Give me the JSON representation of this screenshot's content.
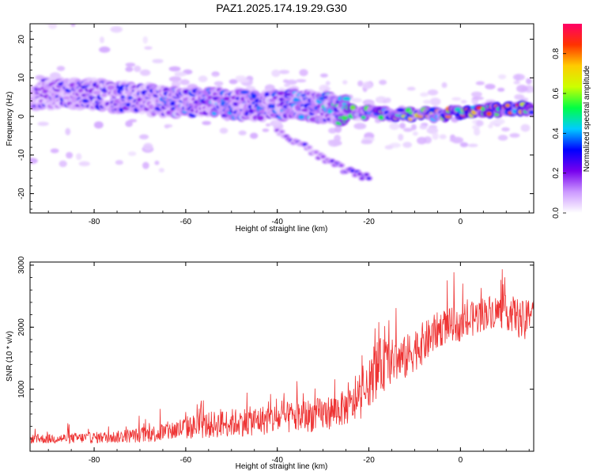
{
  "title": "PAZ1.2025.174.19.29.G30",
  "chart_data": [
    {
      "type": "heatmap",
      "xlabel": "Height of straight line (km)",
      "ylabel": "Frequency (Hz)",
      "xlim": [
        -94,
        16
      ],
      "ylim": [
        -25,
        24
      ],
      "xticks": [
        "-80",
        "-60",
        "-40",
        "-20",
        "0"
      ],
      "xtick_values": [
        -80,
        -60,
        -40,
        -20,
        0
      ],
      "yticks": [
        "20",
        "10",
        "0",
        "-10",
        "-20"
      ],
      "ytick_values": [
        20,
        10,
        0,
        -10,
        -20
      ],
      "colorbar": {
        "label": "Normalized spectral amplitude",
        "range": [
          0,
          0.95
        ],
        "ticks": [
          "0.0",
          "0.2",
          "0.4",
          "0.6",
          "0.8"
        ],
        "tick_values": [
          0,
          0.2,
          0.4,
          0.6,
          0.8
        ],
        "colormap": [
          "#ffffff",
          "#cc99ff",
          "#7700ee",
          "#0000ff",
          "#00ccff",
          "#00ff44",
          "#ccff00",
          "#ffcc00",
          "#ff3300",
          "#ff0066"
        ]
      },
      "main_ridge": {
        "x": [
          -93,
          -85,
          -75,
          -65,
          -55,
          -45,
          -35,
          -28,
          -22,
          -15,
          -5,
          5,
          15
        ],
        "y": [
          6,
          6,
          5,
          4,
          3.5,
          3,
          3,
          2,
          1,
          0.5,
          0.5,
          1.5,
          2
        ],
        "amplitude": [
          0.25,
          0.3,
          0.3,
          0.35,
          0.4,
          0.35,
          0.4,
          0.45,
          0.6,
          0.65,
          0.75,
          0.8,
          0.85
        ]
      },
      "secondary_ridge": {
        "x": [
          -40,
          -35,
          -30,
          -25,
          -20
        ],
        "y": [
          -4,
          -7,
          -11,
          -14,
          -16
        ],
        "amplitude": [
          0.2,
          0.25,
          0.25,
          0.3,
          0.3
        ]
      }
    },
    {
      "type": "line",
      "xlabel": "Height of straight line (km)",
      "ylabel": "SNR (10 * v/v)",
      "xlim": [
        -94,
        16
      ],
      "ylim": [
        0,
        3050
      ],
      "xticks": [
        "-80",
        "-60",
        "-40",
        "-20",
        "0"
      ],
      "xtick_values": [
        -80,
        -60,
        -40,
        -20,
        0
      ],
      "yticks": [
        "3000",
        "2000",
        "1000"
      ],
      "ytick_values": [
        3000,
        2000,
        1000
      ],
      "color": "#ee3333",
      "series": [
        {
          "x": [
            -94,
            -90,
            -85,
            -80,
            -75,
            -70,
            -65,
            -60,
            -55,
            -50,
            -45,
            -40,
            -35,
            -30,
            -25,
            -22,
            -20,
            -18,
            -15,
            -12,
            -10,
            -7,
            -5,
            -2,
            0,
            3,
            6,
            9,
            12,
            14,
            16
          ],
          "y": [
            200,
            200,
            210,
            220,
            230,
            260,
            300,
            380,
            420,
            460,
            490,
            520,
            560,
            600,
            700,
            800,
            1050,
            1350,
            1450,
            1500,
            1650,
            1800,
            1950,
            2050,
            2000,
            2150,
            2250,
            2250,
            2200,
            2050,
            2400
          ],
          "spread": [
            120,
            130,
            140,
            150,
            170,
            200,
            260,
            320,
            360,
            380,
            400,
            420,
            450,
            450,
            480,
            500,
            550,
            800,
            600,
            600,
            600,
            550,
            500,
            450,
            400,
            500,
            450,
            450,
            500,
            600,
            300
          ]
        }
      ]
    }
  ]
}
